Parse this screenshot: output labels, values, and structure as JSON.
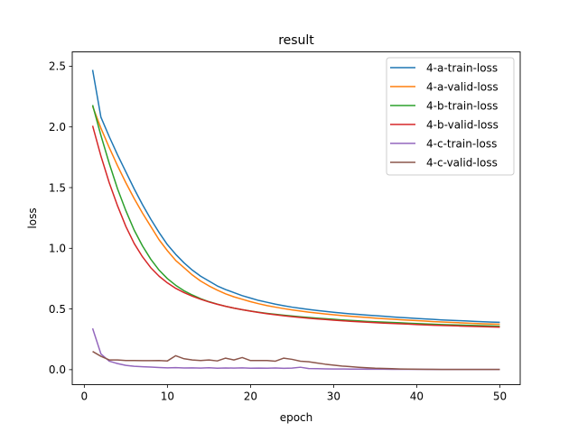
{
  "chart_data": {
    "type": "line",
    "title": "result",
    "xlabel": "epoch",
    "ylabel": "loss",
    "xlim": [
      -1.45,
      52.45
    ],
    "ylim": [
      -0.1235,
      2.6185
    ],
    "xticks": [
      0,
      10,
      20,
      30,
      40,
      50
    ],
    "yticks": [
      0.0,
      0.5,
      1.0,
      1.5,
      2.0,
      2.5
    ],
    "xtick_labels": [
      "0",
      "10",
      "20",
      "30",
      "40",
      "50"
    ],
    "ytick_labels": [
      "0.0",
      "0.5",
      "1.0",
      "1.5",
      "2.0",
      "2.5"
    ],
    "legend_position": "top-right",
    "grid": false,
    "x": [
      1,
      2,
      3,
      4,
      5,
      6,
      7,
      8,
      9,
      10,
      11,
      12,
      13,
      14,
      15,
      16,
      17,
      18,
      19,
      20,
      21,
      22,
      23,
      24,
      25,
      26,
      27,
      28,
      29,
      30,
      31,
      32,
      33,
      34,
      35,
      36,
      37,
      38,
      39,
      40,
      41,
      42,
      43,
      44,
      45,
      46,
      47,
      48,
      49,
      50
    ],
    "series": [
      {
        "name": "4-a-train-loss",
        "color": "#1f77b4",
        "values": [
          2.47,
          2.08,
          1.92,
          1.77,
          1.63,
          1.49,
          1.36,
          1.24,
          1.13,
          1.03,
          0.95,
          0.88,
          0.82,
          0.77,
          0.73,
          0.69,
          0.66,
          0.635,
          0.61,
          0.59,
          0.57,
          0.555,
          0.54,
          0.527,
          0.515,
          0.505,
          0.496,
          0.488,
          0.48,
          0.473,
          0.466,
          0.46,
          0.455,
          0.45,
          0.445,
          0.44,
          0.435,
          0.43,
          0.426,
          0.422,
          0.418,
          0.414,
          0.41,
          0.407,
          0.404,
          0.401,
          0.398,
          0.395,
          0.392,
          0.39
        ]
      },
      {
        "name": "4-a-valid-loss",
        "color": "#ff7f0e",
        "values": [
          2.17,
          1.99,
          1.83,
          1.68,
          1.54,
          1.41,
          1.29,
          1.18,
          1.07,
          0.98,
          0.9,
          0.84,
          0.78,
          0.73,
          0.69,
          0.655,
          0.625,
          0.6,
          0.58,
          0.56,
          0.543,
          0.528,
          0.515,
          0.503,
          0.492,
          0.483,
          0.474,
          0.466,
          0.459,
          0.452,
          0.446,
          0.44,
          0.435,
          0.43,
          0.425,
          0.42,
          0.416,
          0.412,
          0.408,
          0.404,
          0.4,
          0.396,
          0.393,
          0.39,
          0.387,
          0.384,
          0.381,
          0.378,
          0.376,
          0.374
        ]
      },
      {
        "name": "4-b-train-loss",
        "color": "#2ca02c",
        "values": [
          2.18,
          1.93,
          1.7,
          1.49,
          1.31,
          1.15,
          1.02,
          0.91,
          0.82,
          0.75,
          0.695,
          0.65,
          0.615,
          0.585,
          0.56,
          0.54,
          0.522,
          0.507,
          0.494,
          0.483,
          0.473,
          0.464,
          0.456,
          0.449,
          0.442,
          0.436,
          0.43,
          0.425,
          0.42,
          0.415,
          0.41,
          0.406,
          0.402,
          0.398,
          0.395,
          0.392,
          0.389,
          0.386,
          0.383,
          0.38,
          0.377,
          0.374,
          0.372,
          0.37,
          0.368,
          0.366,
          0.364,
          0.362,
          0.36,
          0.358
        ]
      },
      {
        "name": "4-b-valid-loss",
        "color": "#d62728",
        "values": [
          2.01,
          1.76,
          1.54,
          1.35,
          1.18,
          1.04,
          0.93,
          0.84,
          0.77,
          0.715,
          0.67,
          0.635,
          0.605,
          0.58,
          0.558,
          0.539,
          0.522,
          0.507,
          0.494,
          0.482,
          0.471,
          0.461,
          0.452,
          0.444,
          0.437,
          0.43,
          0.424,
          0.418,
          0.413,
          0.408,
          0.403,
          0.399,
          0.395,
          0.391,
          0.387,
          0.384,
          0.381,
          0.378,
          0.375,
          0.372,
          0.369,
          0.366,
          0.364,
          0.362,
          0.36,
          0.358,
          0.356,
          0.354,
          0.352,
          0.35
        ]
      },
      {
        "name": "4-c-train-loss",
        "color": "#9467bd",
        "values": [
          0.34,
          0.13,
          0.07,
          0.05,
          0.035,
          0.028,
          0.024,
          0.021,
          0.018,
          0.015,
          0.017,
          0.014,
          0.015,
          0.013,
          0.016,
          0.012,
          0.014,
          0.013,
          0.015,
          0.012,
          0.013,
          0.012,
          0.014,
          0.011,
          0.013,
          0.02,
          0.009,
          0.008,
          0.007,
          0.006,
          0.006,
          0.005,
          0.005,
          0.004,
          0.004,
          0.004,
          0.003,
          0.003,
          0.003,
          0.003,
          0.003,
          0.002,
          0.002,
          0.002,
          0.002,
          0.002,
          0.002,
          0.002,
          0.002,
          0.002
        ]
      },
      {
        "name": "4-c-valid-loss",
        "color": "#8c564b",
        "values": [
          0.15,
          0.11,
          0.08,
          0.08,
          0.075,
          0.075,
          0.074,
          0.074,
          0.075,
          0.072,
          0.115,
          0.09,
          0.08,
          0.075,
          0.08,
          0.072,
          0.095,
          0.08,
          0.1,
          0.075,
          0.075,
          0.075,
          0.07,
          0.095,
          0.085,
          0.07,
          0.065,
          0.055,
          0.045,
          0.037,
          0.03,
          0.025,
          0.02,
          0.016,
          0.012,
          0.01,
          0.008,
          0.006,
          0.005,
          0.004,
          0.003,
          0.003,
          0.002,
          0.002,
          0.002,
          0.002,
          0.002,
          0.002,
          0.002,
          0.002
        ]
      }
    ]
  }
}
